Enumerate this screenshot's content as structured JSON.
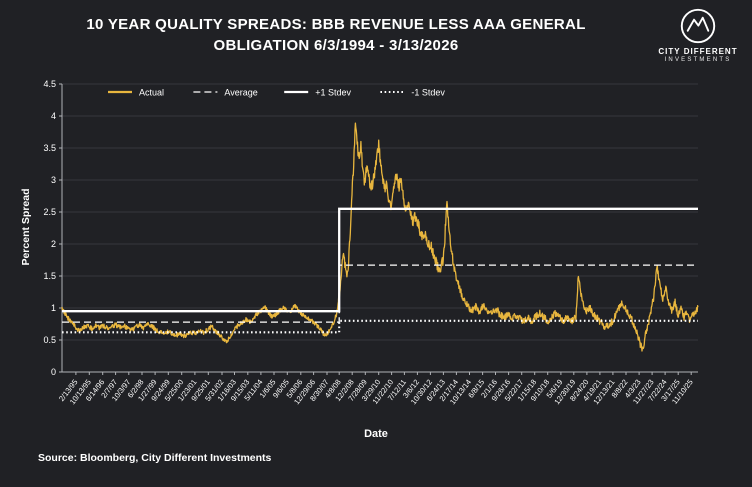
{
  "header": {
    "title_line1": "10 YEAR QUALITY SPREADS: BBB REVENUE LESS AAA GENERAL",
    "title_line2": "OBLIGATION 6/3/1994 - 3/13/2026"
  },
  "logo": {
    "line1": "CITY DIFFERENT",
    "line2": "INVESTMENTS"
  },
  "source": "Source: Bloomberg, City Different Investments",
  "chart_data": {
    "type": "line",
    "title": "10 YEAR QUALITY SPREADS: BBB REVENUE LESS AAA GENERAL OBLIGATION 6/3/1994 - 3/13/2026",
    "xlabel": "Date",
    "ylabel": "Percent Spread",
    "ylim": [
      0,
      4.5
    ],
    "x_range": [
      1994.42,
      2026.2
    ],
    "grid": "horizontal",
    "legend_position": "top-inside",
    "ytick_values": [
      0,
      0.5,
      1,
      1.5,
      2,
      2.5,
      3,
      3.5,
      4,
      4.5
    ],
    "ytick_labels": [
      "0",
      "0.5",
      "1",
      "1.5",
      "2",
      "2.5",
      "3",
      "3.5",
      "4",
      "4.5"
    ],
    "xtick_labels": [
      "2/13/95",
      "10/13/95",
      "6/14/96",
      "2/7/97",
      "10/3/97",
      "6/2/98",
      "1/27/99",
      "9/24/99",
      "5/25/00",
      "1/23/01",
      "9/25/01",
      "5/31/02",
      "1/16/03",
      "9/15/03",
      "5/11/04",
      "1/6/05",
      "9/6/05",
      "5/8/06",
      "12/29/06",
      "8/30/07",
      "4/8/08",
      "12/2/08",
      "7/28/09",
      "3/29/10",
      "11/22/10",
      "7/12/11",
      "3/6/12",
      "10/30/12",
      "6/24/13",
      "2/17/14",
      "10/13/14",
      "6/8/15",
      "2/1/16",
      "9/26/16",
      "5/22/17",
      "1/15/18",
      "9/10/18",
      "5/6/19",
      "12/30/19",
      "8/24/20",
      "4/19/21",
      "12/13/21",
      "8/8/22",
      "4/3/23",
      "11/27/23",
      "7/22/24",
      "3/17/25",
      "11/10/25"
    ],
    "colors": {
      "background": "#202125",
      "grid": "#36383d",
      "axis": "#b0b2b6",
      "text": "#ffffff",
      "accent": "#E8B63E"
    },
    "series": [
      {
        "name": "Actual",
        "color": "#E8B63E",
        "line_style": "solid",
        "anchors": [
          [
            1994.42,
            1.02
          ],
          [
            1994.55,
            0.92
          ],
          [
            1994.7,
            0.85
          ],
          [
            1994.9,
            0.78
          ],
          [
            1995.1,
            0.7
          ],
          [
            1995.3,
            0.64
          ],
          [
            1995.5,
            0.7
          ],
          [
            1995.7,
            0.73
          ],
          [
            1995.9,
            0.68
          ],
          [
            1996.1,
            0.73
          ],
          [
            1996.3,
            0.69
          ],
          [
            1996.5,
            0.72
          ],
          [
            1996.7,
            0.68
          ],
          [
            1996.9,
            0.71
          ],
          [
            1997.1,
            0.74
          ],
          [
            1997.3,
            0.7
          ],
          [
            1997.5,
            0.73
          ],
          [
            1997.7,
            0.68
          ],
          [
            1997.9,
            0.66
          ],
          [
            1998.1,
            0.7
          ],
          [
            1998.3,
            0.73
          ],
          [
            1998.5,
            0.68
          ],
          [
            1998.7,
            0.76
          ],
          [
            1998.9,
            0.72
          ],
          [
            1999.1,
            0.66
          ],
          [
            1999.3,
            0.62
          ],
          [
            1999.5,
            0.6
          ],
          [
            1999.7,
            0.63
          ],
          [
            1999.9,
            0.6
          ],
          [
            2000.1,
            0.57
          ],
          [
            2000.3,
            0.6
          ],
          [
            2000.5,
            0.56
          ],
          [
            2000.7,
            0.59
          ],
          [
            2000.9,
            0.62
          ],
          [
            2001.1,
            0.6
          ],
          [
            2001.3,
            0.64
          ],
          [
            2001.5,
            0.62
          ],
          [
            2001.7,
            0.66
          ],
          [
            2001.9,
            0.71
          ],
          [
            2002.1,
            0.64
          ],
          [
            2002.3,
            0.58
          ],
          [
            2002.5,
            0.5
          ],
          [
            2002.65,
            0.46
          ],
          [
            2002.8,
            0.55
          ],
          [
            2003.0,
            0.66
          ],
          [
            2003.2,
            0.72
          ],
          [
            2003.4,
            0.77
          ],
          [
            2003.6,
            0.82
          ],
          [
            2003.8,
            0.78
          ],
          [
            2004.0,
            0.84
          ],
          [
            2004.2,
            0.92
          ],
          [
            2004.4,
            0.97
          ],
          [
            2004.55,
            1.03
          ],
          [
            2004.7,
            0.93
          ],
          [
            2004.9,
            0.86
          ],
          [
            2005.1,
            0.9
          ],
          [
            2005.3,
            0.96
          ],
          [
            2005.5,
            1.0
          ],
          [
            2005.7,
            0.93
          ],
          [
            2005.9,
            0.97
          ],
          [
            2006.05,
            1.04
          ],
          [
            2006.2,
            0.97
          ],
          [
            2006.4,
            0.9
          ],
          [
            2006.6,
            0.86
          ],
          [
            2006.8,
            0.82
          ],
          [
            2007.0,
            0.78
          ],
          [
            2007.2,
            0.72
          ],
          [
            2007.4,
            0.63
          ],
          [
            2007.6,
            0.56
          ],
          [
            2007.8,
            0.66
          ],
          [
            2008.0,
            0.78
          ],
          [
            2008.15,
            0.92
          ],
          [
            2008.3,
            1.25
          ],
          [
            2008.4,
            1.6
          ],
          [
            2008.5,
            1.9
          ],
          [
            2008.58,
            1.62
          ],
          [
            2008.66,
            1.45
          ],
          [
            2008.74,
            1.7
          ],
          [
            2008.82,
            2.15
          ],
          [
            2008.9,
            2.7
          ],
          [
            2009.0,
            3.3
          ],
          [
            2009.08,
            3.85
          ],
          [
            2009.15,
            3.6
          ],
          [
            2009.25,
            3.35
          ],
          [
            2009.35,
            3.55
          ],
          [
            2009.45,
            3.15
          ],
          [
            2009.55,
            2.95
          ],
          [
            2009.65,
            3.2
          ],
          [
            2009.75,
            3.05
          ],
          [
            2009.85,
            2.85
          ],
          [
            2009.95,
            2.95
          ],
          [
            2010.05,
            3.15
          ],
          [
            2010.15,
            3.4
          ],
          [
            2010.25,
            3.55
          ],
          [
            2010.35,
            3.25
          ],
          [
            2010.45,
            3.0
          ],
          [
            2010.55,
            2.85
          ],
          [
            2010.65,
            2.95
          ],
          [
            2010.75,
            2.7
          ],
          [
            2010.85,
            2.6
          ],
          [
            2010.95,
            2.75
          ],
          [
            2011.05,
            2.95
          ],
          [
            2011.15,
            3.1
          ],
          [
            2011.25,
            2.9
          ],
          [
            2011.35,
            2.98
          ],
          [
            2011.45,
            2.8
          ],
          [
            2011.55,
            2.62
          ],
          [
            2011.65,
            2.52
          ],
          [
            2011.75,
            2.6
          ],
          [
            2011.85,
            2.45
          ],
          [
            2011.95,
            2.35
          ],
          [
            2012.1,
            2.45
          ],
          [
            2012.25,
            2.28
          ],
          [
            2012.4,
            2.12
          ],
          [
            2012.55,
            2.2
          ],
          [
            2012.7,
            1.95
          ],
          [
            2012.85,
            2.02
          ],
          [
            2013.0,
            1.8
          ],
          [
            2013.15,
            1.68
          ],
          [
            2013.3,
            1.58
          ],
          [
            2013.45,
            1.75
          ],
          [
            2013.55,
            2.1
          ],
          [
            2013.65,
            2.62
          ],
          [
            2013.75,
            2.3
          ],
          [
            2013.85,
            1.98
          ],
          [
            2013.95,
            1.72
          ],
          [
            2014.1,
            1.5
          ],
          [
            2014.3,
            1.3
          ],
          [
            2014.5,
            1.12
          ],
          [
            2014.7,
            1.02
          ],
          [
            2014.9,
            0.95
          ],
          [
            2015.1,
            1.02
          ],
          [
            2015.3,
            0.94
          ],
          [
            2015.5,
            1.05
          ],
          [
            2015.7,
            0.96
          ],
          [
            2015.9,
            0.9
          ],
          [
            2016.1,
            1.0
          ],
          [
            2016.3,
            0.9
          ],
          [
            2016.5,
            0.84
          ],
          [
            2016.7,
            0.9
          ],
          [
            2016.9,
            0.84
          ],
          [
            2017.1,
            0.9
          ],
          [
            2017.3,
            0.84
          ],
          [
            2017.5,
            0.79
          ],
          [
            2017.7,
            0.85
          ],
          [
            2017.9,
            0.8
          ],
          [
            2018.1,
            0.86
          ],
          [
            2018.3,
            0.92
          ],
          [
            2018.5,
            0.85
          ],
          [
            2018.7,
            0.8
          ],
          [
            2018.9,
            0.86
          ],
          [
            2019.1,
            0.92
          ],
          [
            2019.3,
            0.85
          ],
          [
            2019.5,
            0.8
          ],
          [
            2019.7,
            0.86
          ],
          [
            2019.9,
            0.8
          ],
          [
            2020.1,
            0.85
          ],
          [
            2020.22,
            1.52
          ],
          [
            2020.35,
            1.2
          ],
          [
            2020.5,
            1.02
          ],
          [
            2020.65,
            0.95
          ],
          [
            2020.8,
            1.0
          ],
          [
            2020.95,
            0.9
          ],
          [
            2021.15,
            0.84
          ],
          [
            2021.35,
            0.78
          ],
          [
            2021.55,
            0.7
          ],
          [
            2021.75,
            0.74
          ],
          [
            2021.95,
            0.8
          ],
          [
            2022.15,
            0.92
          ],
          [
            2022.35,
            1.08
          ],
          [
            2022.55,
            1.0
          ],
          [
            2022.75,
            0.9
          ],
          [
            2022.95,
            0.78
          ],
          [
            2023.15,
            0.62
          ],
          [
            2023.35,
            0.4
          ],
          [
            2023.45,
            0.36
          ],
          [
            2023.6,
            0.62
          ],
          [
            2023.8,
            0.85
          ],
          [
            2024.0,
            1.2
          ],
          [
            2024.15,
            1.65
          ],
          [
            2024.3,
            1.35
          ],
          [
            2024.45,
            1.12
          ],
          [
            2024.6,
            1.3
          ],
          [
            2024.75,
            1.05
          ],
          [
            2024.9,
            0.95
          ],
          [
            2025.05,
            1.1
          ],
          [
            2025.2,
            0.9
          ],
          [
            2025.35,
            1.0
          ],
          [
            2025.5,
            0.85
          ],
          [
            2025.65,
            0.95
          ],
          [
            2025.8,
            0.8
          ],
          [
            2025.95,
            0.9
          ],
          [
            2026.1,
            0.95
          ],
          [
            2026.2,
            1.0
          ]
        ],
        "noise_bands": [
          {
            "until_year": 2008.2,
            "amplitude": 0.035
          },
          {
            "until_year": 2014.0,
            "amplitude": 0.09
          },
          {
            "until_year": 2026.3,
            "amplitude": 0.055
          }
        ]
      },
      {
        "name": "Average",
        "color": "#ffffff",
        "line_style": "dashed",
        "step": {
          "break_year": 2008.27,
          "before": 0.78,
          "after": 1.67
        }
      },
      {
        "name": "+1 Stdev",
        "color": "#ffffff",
        "line_style": "solid",
        "step": {
          "break_year": 2008.27,
          "before": 0.95,
          "after": 2.55
        }
      },
      {
        "name": "-1 Stdev",
        "color": "#ffffff",
        "line_style": "dotted",
        "step": {
          "break_year": 2008.27,
          "before": 0.62,
          "after": 0.8
        }
      }
    ]
  }
}
